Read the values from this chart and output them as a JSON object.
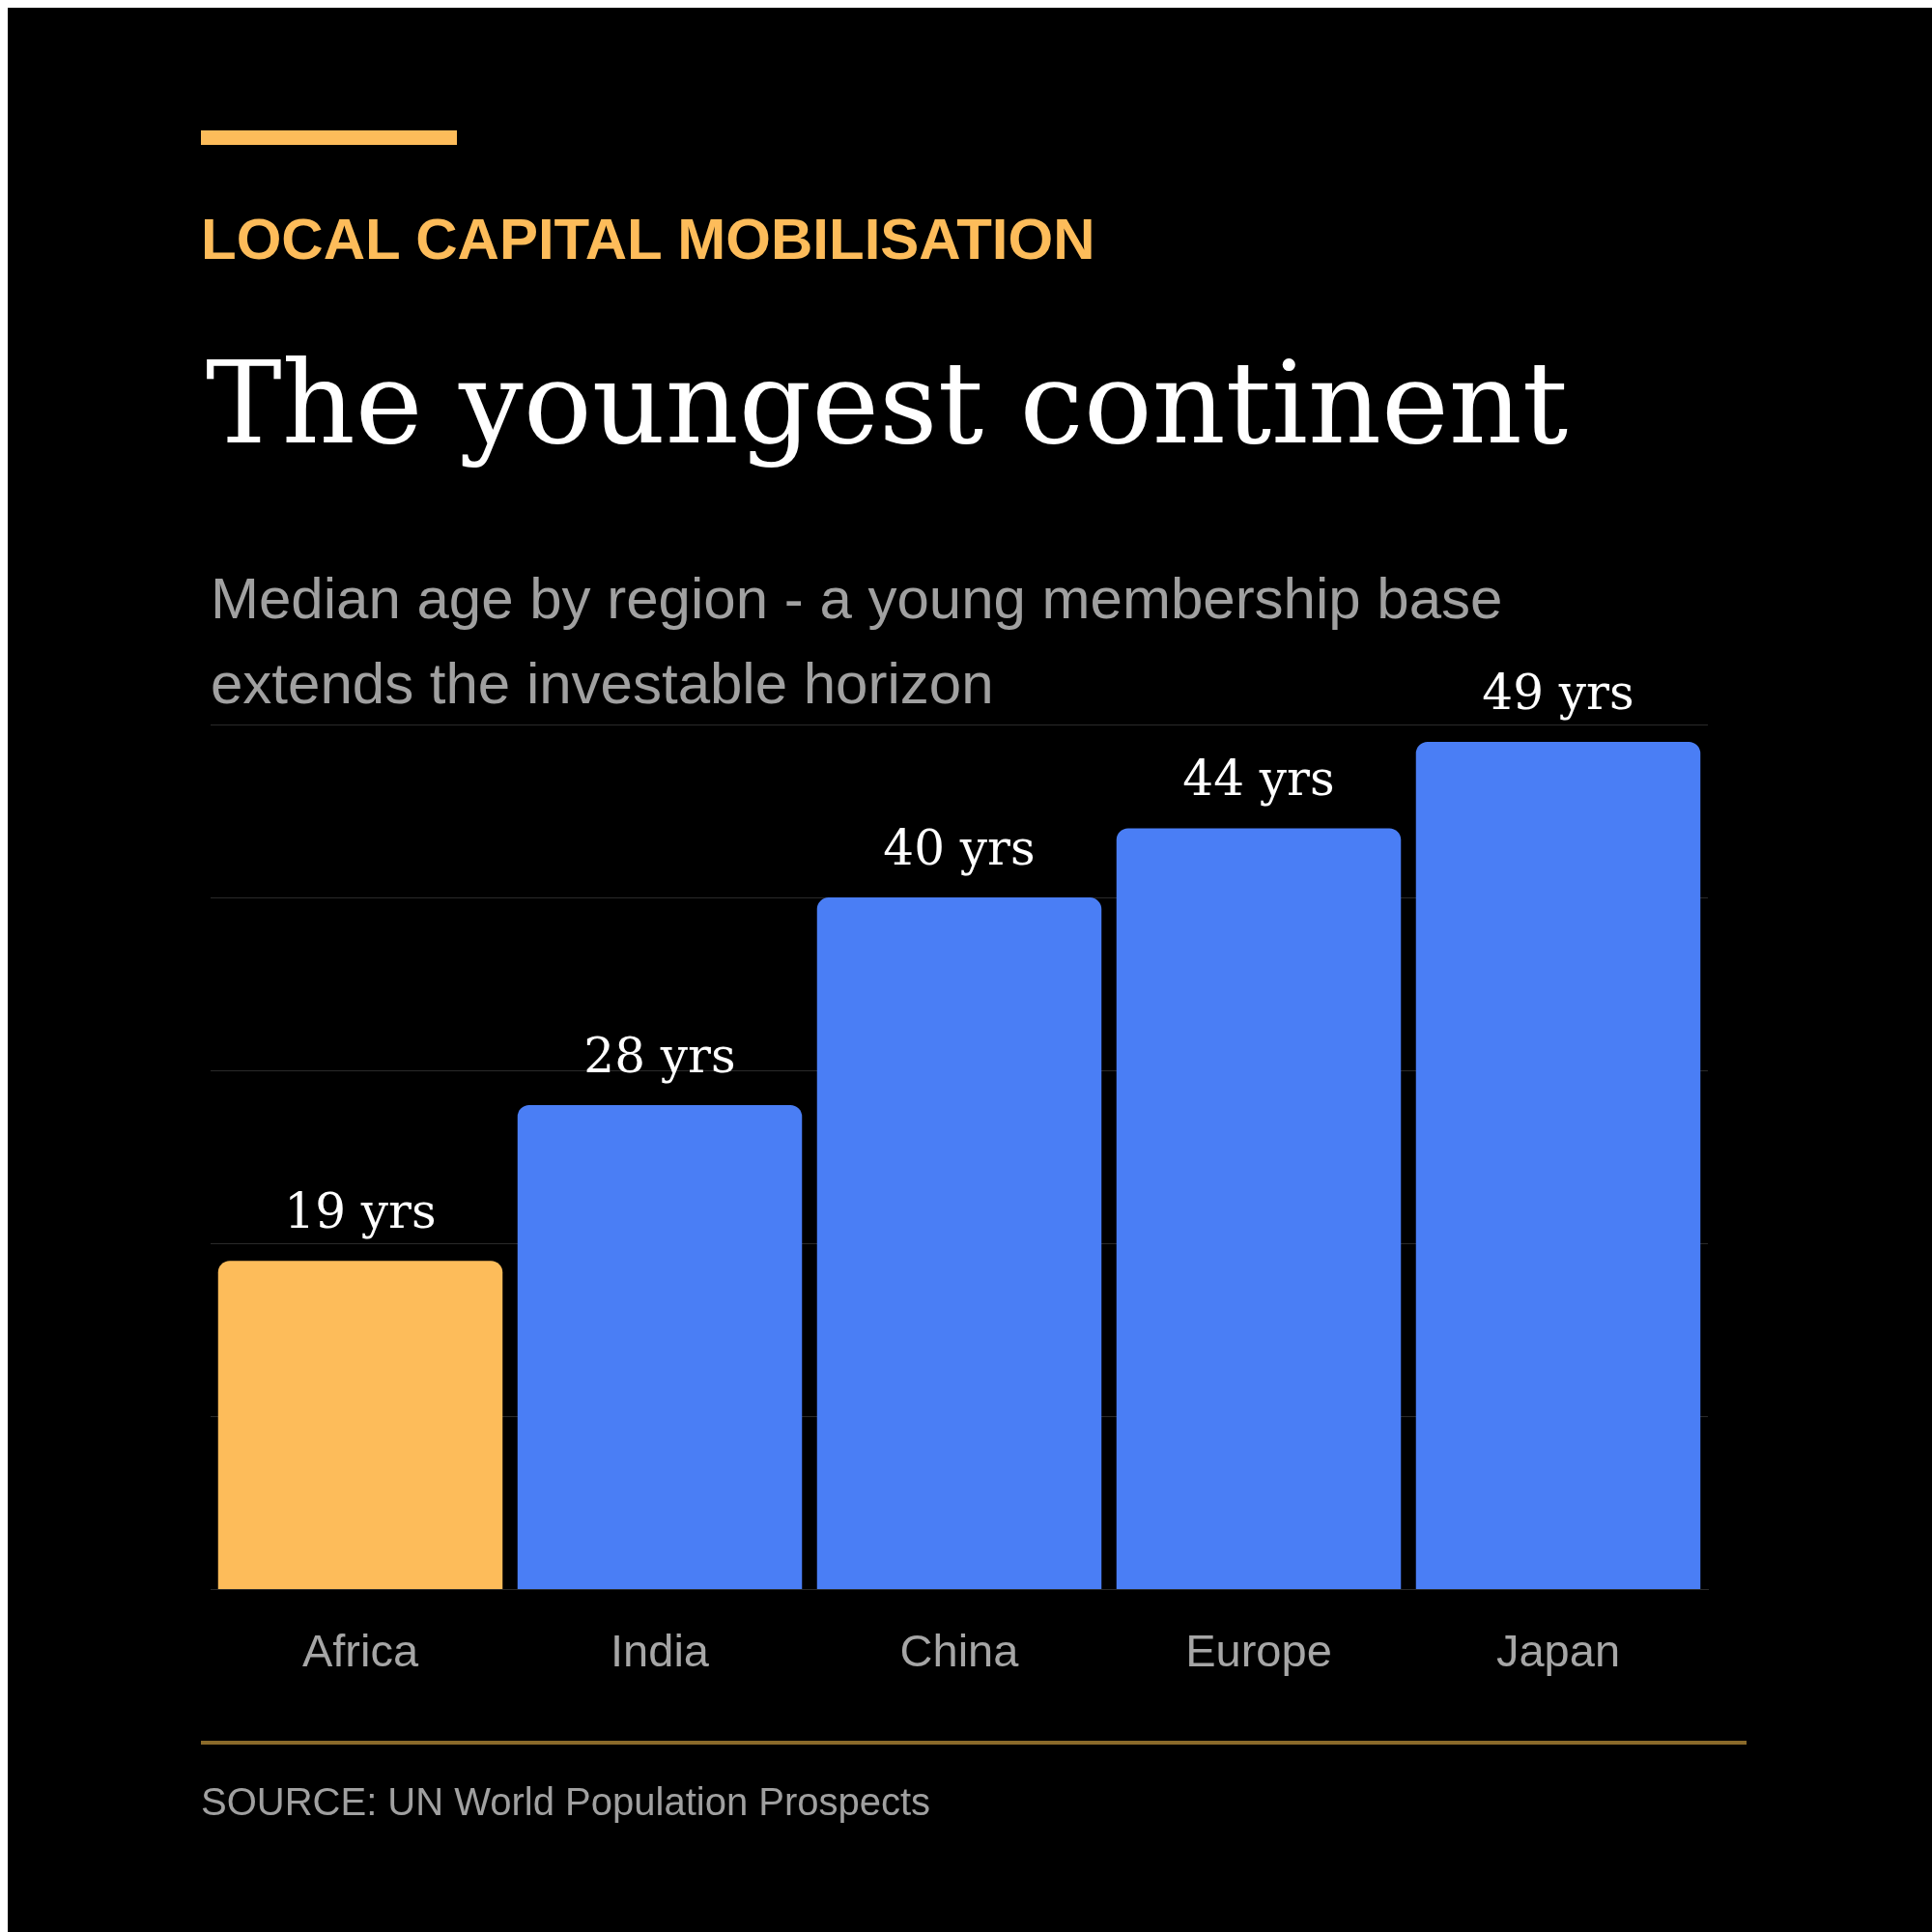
{
  "chart_data": {
    "type": "bar",
    "title": "The youngest continent",
    "subtitle": "Median age by region - a young membership base extends the investable horizon",
    "annotations": [
      "LOCAL CAPITAL MOBILISATION",
      "SOURCE: UN World Population Prospects"
    ],
    "categories": [
      "Africa",
      "India",
      "China",
      "Europe",
      "Japan"
    ],
    "values": [
      19,
      28,
      40,
      44,
      49
    ],
    "colors": [
      "#fdbc5a",
      "#4a7ef5",
      "#4a7ef5",
      "#4a7ef5",
      "#4a7ef5"
    ],
    "value_labels": [
      "19 yrs",
      "28 yrs",
      "40 yrs",
      "44 yrs",
      "49 yrs"
    ],
    "ylim": [
      0,
      50
    ],
    "yticks": [
      {
        "value": 0,
        "label": null
      },
      {
        "value": 10,
        "label": null
      },
      {
        "value": 20,
        "label": null
      },
      {
        "value": 30,
        "label": null
      },
      {
        "value": 40,
        "label": null
      },
      {
        "value": 50,
        "label": null
      }
    ],
    "tick_labels": "x",
    "grid": "y",
    "legend": false
  }
}
